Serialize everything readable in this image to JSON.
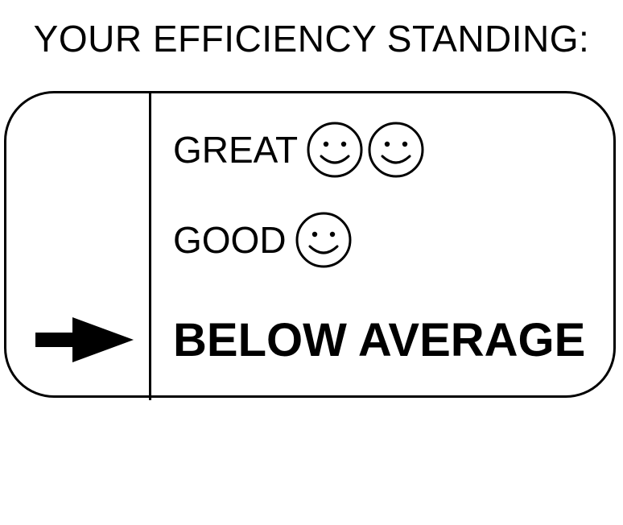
{
  "title": "YOUR EFFICIENCY STANDING:",
  "levels": [
    {
      "label": "GREAT",
      "smileys": 2,
      "icon": "smiley-face-icon"
    },
    {
      "label": "GOOD",
      "smileys": 1,
      "icon": "smiley-face-icon"
    },
    {
      "label": "BELOW AVERAGE",
      "smileys": 0,
      "selected": true
    }
  ],
  "indicator": {
    "icon": "right-arrow-icon",
    "points_to": "BELOW AVERAGE"
  },
  "colors": {
    "ink": "#000000",
    "background": "#ffffff"
  }
}
